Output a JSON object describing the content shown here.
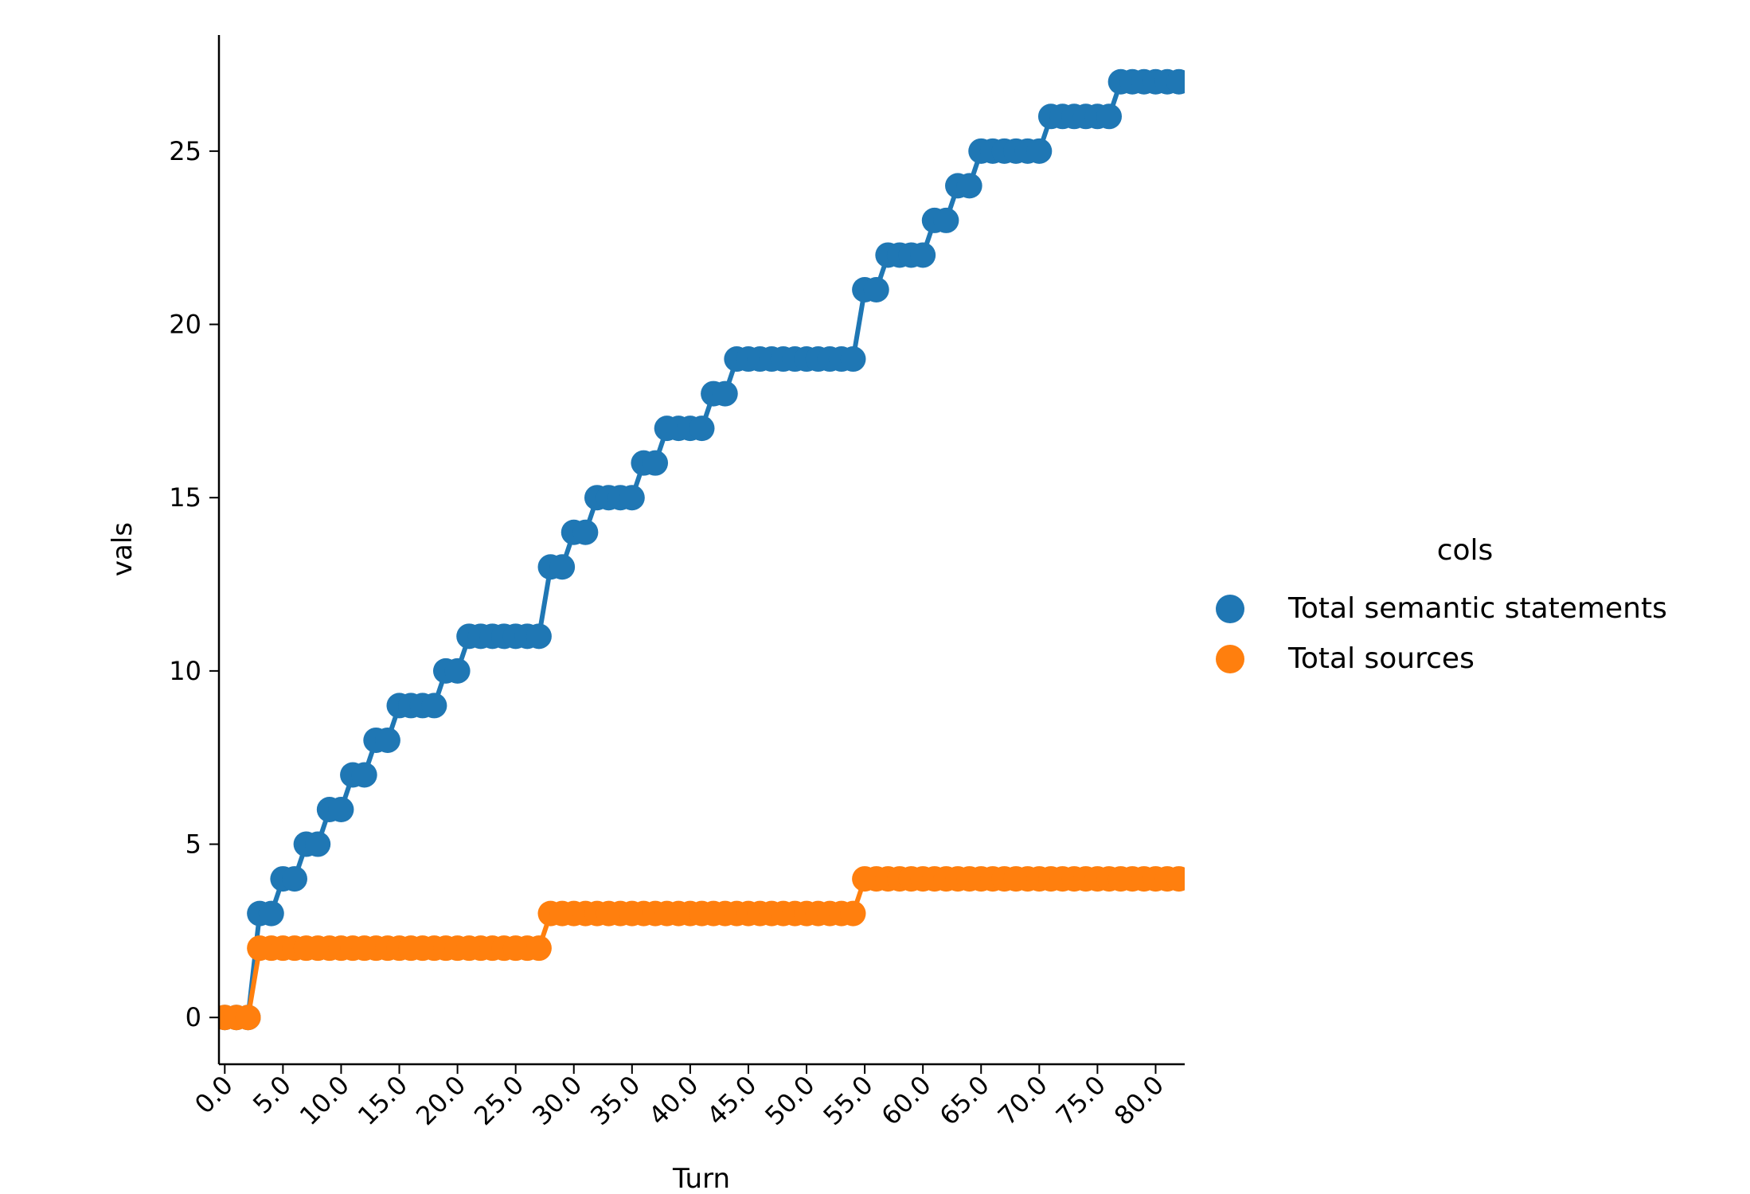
{
  "chart_data": {
    "type": "line",
    "title": "",
    "xlabel": "Turn",
    "ylabel": "vals",
    "xlim": [
      -0.5,
      82.5
    ],
    "ylim": [
      -1.35,
      28.35
    ],
    "xticks": [
      0,
      5,
      10,
      15,
      20,
      25,
      30,
      35,
      40,
      45,
      50,
      55,
      60,
      65,
      70,
      75,
      80
    ],
    "xtick_labels": [
      "0.0",
      "5.0",
      "10.0",
      "15.0",
      "20.0",
      "25.0",
      "30.0",
      "35.0",
      "40.0",
      "45.0",
      "50.0",
      "55.0",
      "60.0",
      "65.0",
      "70.0",
      "75.0",
      "80.0"
    ],
    "yticks": [
      0,
      5,
      10,
      15,
      20,
      25
    ],
    "ytick_labels": [
      "0",
      "5",
      "10",
      "15",
      "20",
      "25"
    ],
    "grid": false,
    "legend": {
      "title": "cols",
      "placement": "right"
    },
    "x": [
      0,
      1,
      2,
      3,
      4,
      5,
      6,
      7,
      8,
      9,
      10,
      11,
      12,
      13,
      14,
      15,
      16,
      17,
      18,
      19,
      20,
      21,
      22,
      23,
      24,
      25,
      26,
      27,
      28,
      29,
      30,
      31,
      32,
      33,
      34,
      35,
      36,
      37,
      38,
      39,
      40,
      41,
      42,
      43,
      44,
      45,
      46,
      47,
      48,
      49,
      50,
      51,
      52,
      53,
      54,
      55,
      56,
      57,
      58,
      59,
      60,
      61,
      62,
      63,
      64,
      65,
      66,
      67,
      68,
      69,
      70,
      71,
      72,
      73,
      74,
      75,
      76,
      77,
      78,
      79,
      80,
      81,
      82
    ],
    "series": [
      {
        "name": "Total semantic statements",
        "color": "#1f77b4",
        "values": [
          0,
          0,
          0,
          3,
          3,
          4,
          4,
          5,
          5,
          6,
          6,
          7,
          7,
          8,
          8,
          9,
          9,
          9,
          9,
          10,
          10,
          11,
          11,
          11,
          11,
          11,
          11,
          11,
          13,
          13,
          14,
          14,
          15,
          15,
          15,
          15,
          16,
          16,
          17,
          17,
          17,
          17,
          18,
          18,
          19,
          19,
          19,
          19,
          19,
          19,
          19,
          19,
          19,
          19,
          19,
          21,
          21,
          22,
          22,
          22,
          22,
          23,
          23,
          24,
          24,
          25,
          25,
          25,
          25,
          25,
          25,
          26,
          26,
          26,
          26,
          26,
          26,
          27,
          27,
          27,
          27,
          27,
          27
        ]
      },
      {
        "name": "Total sources",
        "color": "#ff7f0e",
        "values": [
          0,
          0,
          0,
          2,
          2,
          2,
          2,
          2,
          2,
          2,
          2,
          2,
          2,
          2,
          2,
          2,
          2,
          2,
          2,
          2,
          2,
          2,
          2,
          2,
          2,
          2,
          2,
          2,
          3,
          3,
          3,
          3,
          3,
          3,
          3,
          3,
          3,
          3,
          3,
          3,
          3,
          3,
          3,
          3,
          3,
          3,
          3,
          3,
          3,
          3,
          3,
          3,
          3,
          3,
          3,
          4,
          4,
          4,
          4,
          4,
          4,
          4,
          4,
          4,
          4,
          4,
          4,
          4,
          4,
          4,
          4,
          4,
          4,
          4,
          4,
          4,
          4,
          4,
          4,
          4,
          4,
          4,
          4
        ]
      }
    ]
  }
}
